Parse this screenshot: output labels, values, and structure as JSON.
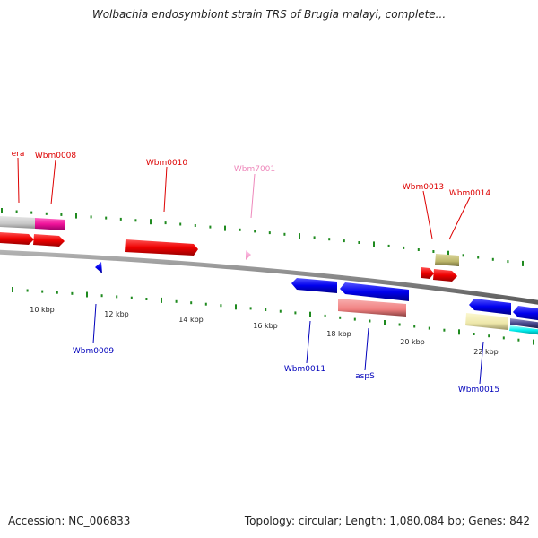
{
  "title": "Wolbachia endosymbiont strain TRS of Brugia malayi, complete...",
  "footer": {
    "accession": "Accession: NC_006833",
    "summary": "Topology: circular; Length: 1,080,084 bp; Genes: 842"
  },
  "colors": {
    "backbone": "#8a8a8a",
    "tick": "#1f8a1f",
    "forward_label": "#dd0000",
    "reverse_label": "#0000bb",
    "pink_label": "#ee88bb",
    "axis_label": "#222222"
  },
  "scale": {
    "unit": "kbp",
    "ruler_labels": [
      "10 kbp",
      "12 kbp",
      "14 kbp",
      "16 kbp",
      "18 kbp",
      "20 kbp",
      "22 kbp"
    ]
  },
  "gene_labels": [
    {
      "name": "era",
      "color": "#dd0000"
    },
    {
      "name": "Wbm0008",
      "color": "#dd0000"
    },
    {
      "name": "Wbm0010",
      "color": "#dd0000"
    },
    {
      "name": "Wbm7001",
      "color": "#ee88bb"
    },
    {
      "name": "Wbm0013",
      "color": "#dd0000"
    },
    {
      "name": "Wbm0014",
      "color": "#dd0000"
    },
    {
      "name": "Wbm0009",
      "color": "#0000bb"
    },
    {
      "name": "Wbm0011",
      "color": "#0000bb"
    },
    {
      "name": "aspS",
      "color": "#0000bb"
    },
    {
      "name": "Wbm0015",
      "color": "#0000bb"
    }
  ],
  "features": [
    {
      "id": "era",
      "strand": "+",
      "color": "#ee0000"
    },
    {
      "id": "Wbm0008",
      "strand": "+",
      "color": "#ee0000"
    },
    {
      "id": "Wbm0010",
      "strand": "+",
      "color": "#ee0000"
    },
    {
      "id": "Wbm7001",
      "strand": "+",
      "color": "#ee88bb"
    },
    {
      "id": "Wbm0013",
      "strand": "+",
      "color": "#ee0000"
    },
    {
      "id": "Wbm0014",
      "strand": "+",
      "color": "#ee0000"
    },
    {
      "id": "Wbm0009",
      "strand": "-",
      "color": "#0000ee"
    },
    {
      "id": "Wbm0011",
      "strand": "-",
      "color": "#0000ee"
    },
    {
      "id": "aspS",
      "strand": "-",
      "color": "#0000ee"
    },
    {
      "id": "Wbm0015",
      "strand": "-",
      "color": "#0000ee"
    },
    {
      "id": "track-gray",
      "strand": "+",
      "color": "#c8c8c8"
    },
    {
      "id": "track-magenta",
      "strand": "+",
      "color": "#ee1199"
    },
    {
      "id": "track-olive",
      "strand": "+",
      "color": "#bdb76b"
    },
    {
      "id": "track-salmon",
      "strand": "-",
      "color": "#f08080"
    },
    {
      "id": "track-khaki",
      "strand": "-",
      "color": "#eee8aa"
    },
    {
      "id": "track-navy",
      "strand": "-",
      "color": "#444488"
    },
    {
      "id": "track-cyan",
      "strand": "-",
      "color": "#00eeee"
    }
  ]
}
